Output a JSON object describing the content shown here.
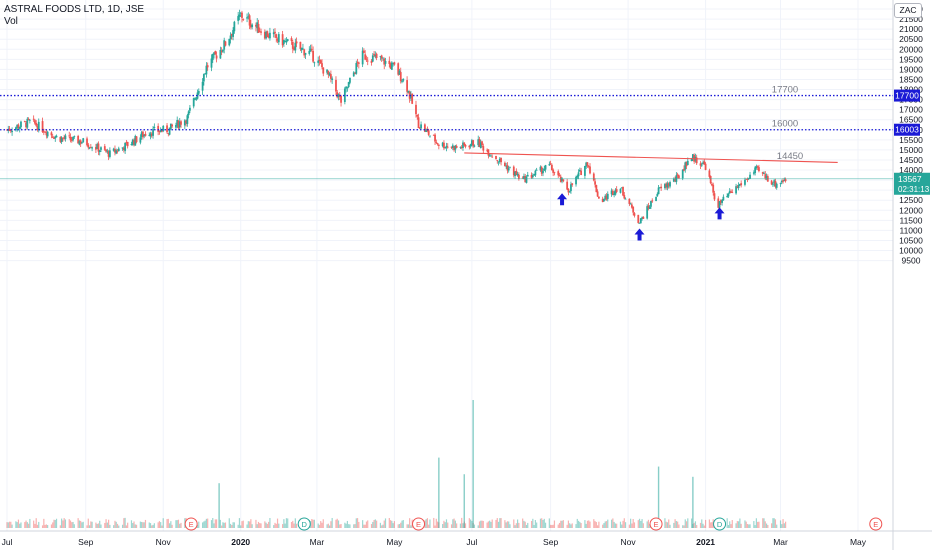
{
  "header": {
    "title": "ASTRAL FOODS LTD, 1D, JSE",
    "volume_label": "Vol",
    "currency_badge": "ZAC"
  },
  "colors": {
    "up": "#26a69a",
    "down": "#ef5350",
    "level_line": "#1a1ad6",
    "trend_line": "#ef5350",
    "arrow": "#1a1ad6",
    "price_tag": "#26a69a",
    "event_marker": "#ef5350",
    "dividend_marker": "#26a69a"
  },
  "chart_data": {
    "type": "candlestick",
    "title": "ASTRAL FOODS LTD, 1D, JSE",
    "y_axis": {
      "range": [
        9100,
        22200
      ],
      "ticks": [
        9500,
        10000,
        10500,
        11000,
        11500,
        12000,
        12500,
        13000,
        13500,
        14000,
        14500,
        15000,
        15500,
        16000,
        16500,
        17000,
        17500,
        18000,
        18500,
        19000,
        19500,
        20000,
        20500,
        21000,
        21500,
        22000
      ]
    },
    "x_axis": {
      "ticks": [
        "Jul",
        "Sep",
        "Nov",
        "2020",
        "Mar",
        "May",
        "Jul",
        "Sep",
        "Nov",
        "2021",
        "Mar",
        "May"
      ]
    },
    "price_path": [
      [
        "2019-07-01",
        16000
      ],
      [
        "2019-07-20",
        16400
      ],
      [
        "2019-08-10",
        15600
      ],
      [
        "2019-08-31",
        15400
      ],
      [
        "2019-09-20",
        14800
      ],
      [
        "2019-10-05",
        15300
      ],
      [
        "2019-10-20",
        15900
      ],
      [
        "2019-11-05",
        16000
      ],
      [
        "2019-11-20",
        16600
      ],
      [
        "2019-12-05",
        19100
      ],
      [
        "2019-12-20",
        20300
      ],
      [
        "2020-01-01",
        21700
      ],
      [
        "2020-01-20",
        20800
      ],
      [
        "2020-02-10",
        20200
      ],
      [
        "2020-02-25",
        19800
      ],
      [
        "2020-03-10",
        18700
      ],
      [
        "2020-03-20",
        17400
      ],
      [
        "2020-04-05",
        19700
      ],
      [
        "2020-04-20",
        19500
      ],
      [
        "2020-05-01",
        19100
      ],
      [
        "2020-05-10",
        18300
      ],
      [
        "2020-05-20",
        16300
      ],
      [
        "2020-06-05",
        15300
      ],
      [
        "2020-06-20",
        15100
      ],
      [
        "2020-07-05",
        15400
      ],
      [
        "2020-07-20",
        14600
      ],
      [
        "2020-08-10",
        13500
      ],
      [
        "2020-08-31",
        14200
      ],
      [
        "2020-09-15",
        13000
      ],
      [
        "2020-09-30",
        14400
      ],
      [
        "2020-10-10",
        12400
      ],
      [
        "2020-10-25",
        13200
      ],
      [
        "2020-11-10",
        11400
      ],
      [
        "2020-11-25",
        13000
      ],
      [
        "2020-12-10",
        13600
      ],
      [
        "2020-12-20",
        14700
      ],
      [
        "2021-01-01",
        14200
      ],
      [
        "2021-01-10",
        12200
      ],
      [
        "2021-01-25",
        13100
      ],
      [
        "2021-02-10",
        14000
      ],
      [
        "2021-02-25",
        13300
      ],
      [
        "2021-03-05",
        13567
      ]
    ],
    "levels": [
      {
        "label": "17700",
        "value": 17700,
        "axis_tag": "17700"
      },
      {
        "label": "16000",
        "value": 16003,
        "axis_tag": "16003"
      }
    ],
    "trendline": {
      "label": "14450",
      "start": [
        "2020-06-25",
        14850
      ],
      "end": [
        "2021-04-15",
        14380
      ]
    },
    "current_price": {
      "value": "13567",
      "countdown": "02:31:13"
    },
    "arrows": [
      {
        "date": "2020-09-10",
        "value": 12550
      },
      {
        "date": "2020-11-10",
        "value": 10800
      },
      {
        "date": "2021-01-12",
        "value": 11850
      }
    ],
    "events": [
      {
        "date": "2019-11-23",
        "kind": "E"
      },
      {
        "date": "2020-02-20",
        "kind": "D"
      },
      {
        "date": "2020-05-20",
        "kind": "E"
      },
      {
        "date": "2020-11-23",
        "kind": "E"
      },
      {
        "date": "2021-01-12",
        "kind": "D"
      },
      {
        "date": "2021-05-15",
        "kind": "E"
      }
    ],
    "volume_spikes": [
      {
        "date": "2020-07-02",
        "relative": 1.0
      },
      {
        "date": "2020-06-05",
        "relative": 0.55
      },
      {
        "date": "2020-06-25",
        "relative": 0.42
      },
      {
        "date": "2019-12-15",
        "relative": 0.35
      },
      {
        "date": "2020-12-22",
        "relative": 0.4
      },
      {
        "date": "2020-11-25",
        "relative": 0.48
      }
    ]
  }
}
